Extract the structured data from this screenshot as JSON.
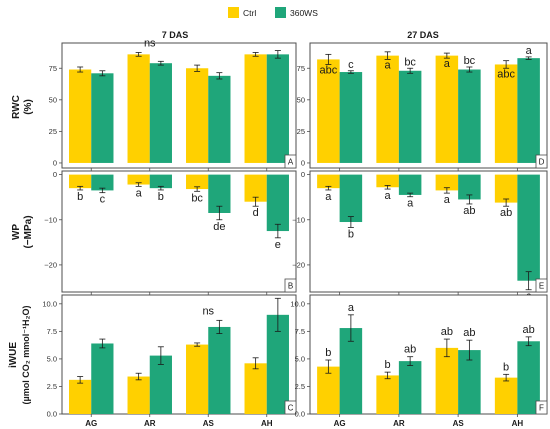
{
  "legend": {
    "items": [
      {
        "label": "Ctrl",
        "color": "#FFD000"
      },
      {
        "label": "360WS",
        "color": "#1FA67A"
      }
    ]
  },
  "strips": [
    "7 DAS",
    "27 DAS"
  ],
  "ylabels": [
    "RWC",
    "(%)",
    "WP",
    "(−MPa)",
    "iWUE",
    "(µmol CO₂ mmol⁻¹H₂O)"
  ],
  "chart_data": [
    {
      "type": "bar",
      "panel": "A",
      "row": "RWC",
      "strip": "7 DAS",
      "categories": [
        "AG",
        "AR",
        "AS",
        "AH"
      ],
      "ylim": [
        -4,
        95
      ],
      "yticks": [
        0,
        25,
        50,
        75
      ],
      "series": [
        {
          "name": "Ctrl",
          "values": [
            74,
            86,
            75,
            86
          ],
          "errors": [
            2,
            1.5,
            2.5,
            1.5
          ]
        },
        {
          "name": "360WS",
          "values": [
            71,
            79,
            69,
            86
          ],
          "errors": [
            2,
            1.5,
            2.5,
            3
          ]
        }
      ],
      "letters": [],
      "annotation": {
        "text": "ns",
        "category_index": 1
      }
    },
    {
      "type": "bar",
      "panel": "D",
      "row": "RWC",
      "strip": "27 DAS",
      "categories": [
        "AG",
        "AR",
        "AS",
        "AH"
      ],
      "ylim": [
        -4,
        95
      ],
      "yticks": [
        0,
        25,
        50,
        75
      ],
      "series": [
        {
          "name": "Ctrl",
          "values": [
            82,
            85,
            85,
            78
          ],
          "errors": [
            4,
            3,
            2,
            3
          ]
        },
        {
          "name": "360WS",
          "values": [
            72,
            73,
            74,
            83
          ],
          "errors": [
            1,
            2,
            2,
            1
          ]
        }
      ],
      "letters": [
        [
          "abc",
          "c"
        ],
        [
          "a",
          "bc"
        ],
        [
          "a",
          "bc"
        ],
        [
          "abc",
          "a"
        ]
      ]
    },
    {
      "type": "bar",
      "panel": "B",
      "row": "WP",
      "strip": "7 DAS",
      "categories": [
        "AG",
        "AR",
        "AS",
        "AH"
      ],
      "ylim": [
        -26,
        0.8
      ],
      "yticks": [
        0,
        -10,
        -20
      ],
      "series": [
        {
          "name": "Ctrl",
          "values": [
            -3.0,
            -2.2,
            -3.2,
            -6.0
          ],
          "errors": [
            0.4,
            0.4,
            0.5,
            1.0
          ]
        },
        {
          "name": "360WS",
          "values": [
            -3.5,
            -3.0,
            -8.5,
            -12.5
          ],
          "errors": [
            0.5,
            0.4,
            1.5,
            1.5
          ]
        }
      ],
      "letters": [
        [
          "b",
          "c"
        ],
        [
          "a",
          "b"
        ],
        [
          "bc",
          "de"
        ],
        [
          "d",
          "e"
        ]
      ]
    },
    {
      "type": "bar",
      "panel": "E",
      "row": "WP",
      "strip": "27 DAS",
      "categories": [
        "AG",
        "AR",
        "AS",
        "AH"
      ],
      "ylim": [
        -26,
        0.8
      ],
      "yticks": [
        0,
        -10,
        -20
      ],
      "series": [
        {
          "name": "Ctrl",
          "values": [
            -3.0,
            -2.8,
            -3.5,
            -6.2
          ],
          "errors": [
            0.4,
            0.4,
            0.6,
            0.8
          ]
        },
        {
          "name": "360WS",
          "values": [
            -10.5,
            -4.5,
            -5.5,
            -23.5
          ],
          "errors": [
            1.2,
            0.4,
            1.0,
            2.0
          ]
        }
      ],
      "letters": [
        [
          "a",
          "b"
        ],
        [
          "a",
          "a"
        ],
        [
          "a",
          "ab"
        ],
        [
          "ab",
          "c"
        ]
      ]
    },
    {
      "type": "bar",
      "panel": "C",
      "row": "iWUE",
      "strip": "7 DAS",
      "categories": [
        "AG",
        "AR",
        "AS",
        "AH"
      ],
      "ylim": [
        0,
        10.8
      ],
      "yticks": [
        0,
        2.5,
        5.0,
        7.5,
        10.0
      ],
      "series": [
        {
          "name": "Ctrl",
          "values": [
            3.1,
            3.4,
            6.3,
            4.6
          ],
          "errors": [
            0.3,
            0.3,
            0.15,
            0.5
          ]
        },
        {
          "name": "360WS",
          "values": [
            6.4,
            5.3,
            7.9,
            9.0
          ],
          "errors": [
            0.4,
            0.8,
            0.6,
            1.5
          ]
        }
      ],
      "letters": [],
      "annotation": {
        "text": "ns",
        "category_index": 2
      }
    },
    {
      "type": "bar",
      "panel": "F",
      "row": "iWUE",
      "strip": "27 DAS",
      "categories": [
        "AG",
        "AR",
        "AS",
        "AH"
      ],
      "ylim": [
        0,
        10.8
      ],
      "yticks": [
        0,
        2.5,
        5.0,
        7.5,
        10.0
      ],
      "series": [
        {
          "name": "Ctrl",
          "values": [
            4.3,
            3.5,
            6.0,
            3.3
          ],
          "errors": [
            0.6,
            0.3,
            0.8,
            0.3
          ]
        },
        {
          "name": "360WS",
          "values": [
            7.8,
            4.8,
            5.8,
            6.6
          ],
          "errors": [
            1.2,
            0.4,
            0.9,
            0.4
          ]
        }
      ],
      "letters": [
        [
          "b",
          "a"
        ],
        [
          "b",
          "ab"
        ],
        [
          "ab",
          "ab"
        ],
        [
          "b",
          "ab"
        ]
      ]
    }
  ]
}
